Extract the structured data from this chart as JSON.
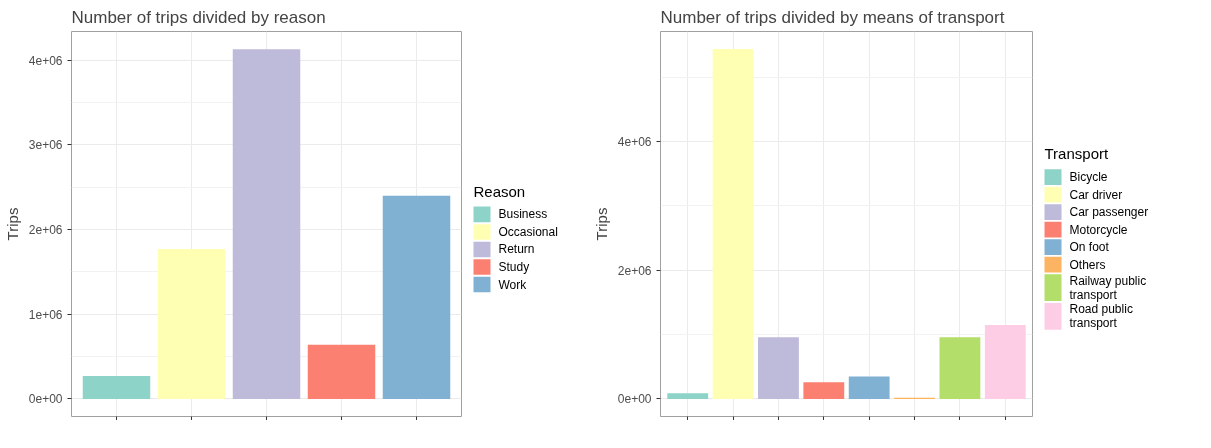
{
  "chart_data": [
    {
      "type": "bar",
      "title": "Number of trips divided by reason",
      "ylabel": "Trips",
      "legend_title": "Reason",
      "categories": [
        null,
        null,
        null,
        null,
        null
      ],
      "series": [
        {
          "name": "Business",
          "color": "#8dd3c7",
          "values": [
            270000,
            null,
            null,
            null,
            null
          ]
        },
        {
          "name": "Occasional",
          "color": "#ffffb3",
          "values": [
            null,
            1770000,
            null,
            null,
            null
          ]
        },
        {
          "name": "Return",
          "color": "#bebada",
          "values": [
            null,
            null,
            4130000,
            null,
            null
          ]
        },
        {
          "name": "Study",
          "color": "#fb8072",
          "values": [
            null,
            null,
            null,
            640000,
            null
          ]
        },
        {
          "name": "Work",
          "color": "#80b1d3",
          "values": [
            null,
            null,
            null,
            null,
            2400000
          ]
        }
      ],
      "ylim": [
        -207000,
        4340000
      ],
      "yticks": [
        {
          "value": 0,
          "label": "0e+00"
        },
        {
          "value": 500000,
          "label": null
        },
        {
          "value": 1000000,
          "label": "1e+06"
        },
        {
          "value": 1500000,
          "label": null
        },
        {
          "value": 2000000,
          "label": "2e+06"
        },
        {
          "value": 2500000,
          "label": null
        },
        {
          "value": 3000000,
          "label": "3e+06"
        },
        {
          "value": 3500000,
          "label": null
        },
        {
          "value": 4000000,
          "label": "4e+06"
        }
      ],
      "grid": true,
      "legend": "right",
      "tick_labels": "y"
    },
    {
      "type": "bar",
      "title": "Number of trips divided by means of transport",
      "ylabel": "Trips",
      "legend_title": "Transport",
      "categories": [
        null,
        null,
        null,
        null,
        null,
        null,
        null,
        null
      ],
      "series": [
        {
          "name": "Bicycle",
          "color": "#8dd3c7",
          "values": [
            90000,
            null,
            null,
            null,
            null,
            null,
            null,
            null
          ]
        },
        {
          "name": "Car driver",
          "color": "#ffffb3",
          "values": [
            null,
            5440000,
            null,
            null,
            null,
            null,
            null,
            null
          ]
        },
        {
          "name": "Car passenger",
          "color": "#bebada",
          "values": [
            null,
            null,
            960000,
            null,
            null,
            null,
            null,
            null
          ]
        },
        {
          "name": "Motorcycle",
          "color": "#fb8072",
          "values": [
            null,
            null,
            null,
            260000,
            null,
            null,
            null,
            null
          ]
        },
        {
          "name": "On foot",
          "color": "#80b1d3",
          "values": [
            null,
            null,
            null,
            null,
            350000,
            null,
            null,
            null
          ]
        },
        {
          "name": "Others",
          "color": "#fdb462",
          "values": [
            null,
            null,
            null,
            null,
            null,
            20000,
            null,
            null
          ]
        },
        {
          "name": "Railway public transport",
          "color": "#b3de69",
          "values": [
            null,
            null,
            null,
            null,
            null,
            null,
            960000,
            null
          ]
        },
        {
          "name": "Road public transport",
          "color": "#fccde5",
          "values": [
            null,
            null,
            null,
            null,
            null,
            null,
            null,
            1150000
          ]
        }
      ],
      "ylim": [
        -272000,
        5710000
      ],
      "yticks": [
        {
          "value": 0,
          "label": "0e+00"
        },
        {
          "value": 1000000,
          "label": null
        },
        {
          "value": 2000000,
          "label": "2e+06"
        },
        {
          "value": 3000000,
          "label": null
        },
        {
          "value": 4000000,
          "label": "4e+06"
        },
        {
          "value": 5000000,
          "label": null
        }
      ],
      "grid": true,
      "legend": "right",
      "tick_labels": "y"
    }
  ]
}
